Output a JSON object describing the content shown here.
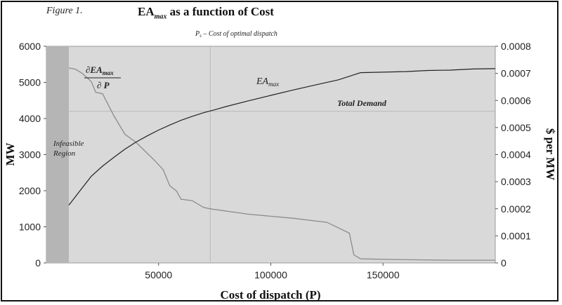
{
  "figure_label": "Figure 1.",
  "title": {
    "main": "EA",
    "sub": "max",
    "rest": " as a function of Cost"
  },
  "chart_data": {
    "type": "line",
    "xlabel": "Cost of dispatch (P)",
    "ylabel_left": "MW",
    "ylabel_right": "$ per MW",
    "xlim": [
      0,
      200000
    ],
    "ylim_left": [
      0,
      6000
    ],
    "ylim_right": [
      0,
      0.0008
    ],
    "x_ticks": [
      50000,
      100000,
      150000
    ],
    "y_ticks_left": [
      0,
      1000,
      2000,
      3000,
      4000,
      5000,
      6000
    ],
    "y_ticks_right": [
      "0",
      "0.0001",
      "0.0002",
      "0.0003",
      "0.0004",
      "0.0005",
      "0.0006",
      "0.0007",
      "0.0008"
    ],
    "y_ticks_right_values": [
      0,
      0.0001,
      0.0002,
      0.0003,
      0.0004,
      0.0005,
      0.0006,
      0.0007,
      0.0008
    ],
    "grid": false,
    "infeasible_region": {
      "x_start": 0,
      "x_end": 10000,
      "label_line1": "Infeasible",
      "label_line2": "Region"
    },
    "vertical_marker": {
      "x": 73000,
      "label_main": "P",
      "label_sub": "s",
      "label_rest": " – Cost of optimal dispatch"
    },
    "total_demand": {
      "y": 4200,
      "label": "Total Demand"
    },
    "series": [
      {
        "name": "EAmax",
        "axis": "left",
        "x": [
          10000,
          15000,
          20000,
          25000,
          30000,
          35000,
          40000,
          45000,
          50000,
          55000,
          60000,
          65000,
          70000,
          75000,
          80000,
          90000,
          100000,
          110000,
          120000,
          130000,
          140000,
          160000,
          170000,
          180000,
          190000,
          200000
        ],
        "y": [
          1600,
          2000,
          2400,
          2680,
          2920,
          3150,
          3350,
          3520,
          3680,
          3820,
          3950,
          4060,
          4160,
          4240,
          4330,
          4490,
          4640,
          4790,
          4930,
          5070,
          5270,
          5300,
          5330,
          5340,
          5370,
          5380
        ]
      },
      {
        "name": "dEAmax/dP",
        "axis": "right",
        "x": [
          10000,
          13000,
          16000,
          20000,
          22000,
          25000,
          30000,
          35000,
          40000,
          48000,
          52000,
          55000,
          58000,
          60000,
          65000,
          70000,
          73000,
          90000,
          110000,
          125000,
          130000,
          135000,
          137000,
          140000,
          160000,
          180000,
          200000
        ],
        "y": [
          0.00072,
          0.000715,
          0.0007,
          0.00067,
          0.00063,
          0.000625,
          0.000545,
          0.000475,
          0.000445,
          0.00038,
          0.000345,
          0.000285,
          0.000265,
          0.000235,
          0.00023,
          0.000205,
          0.0002,
          0.00018,
          0.000165,
          0.00015,
          0.00013,
          0.00011,
          3e-05,
          1.5e-05,
          1.2e-05,
          1e-05,
          1e-05
        ]
      }
    ],
    "annotations": {
      "eamax_label_main": "EA",
      "eamax_label_sub": "max",
      "deriv_numerator_main": "∂EA",
      "deriv_numerator_sub": "max",
      "deriv_denominator": "∂ P"
    }
  }
}
